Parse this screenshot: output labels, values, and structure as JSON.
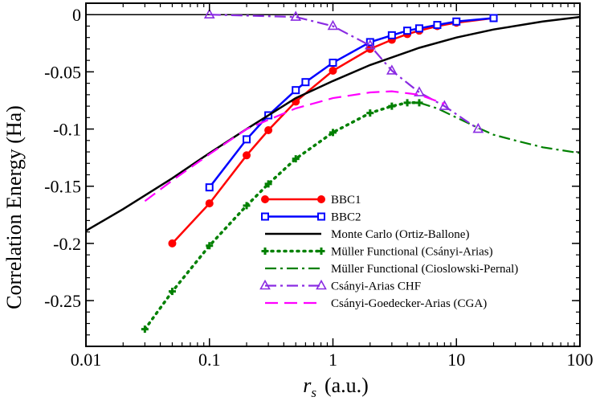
{
  "chart_data": {
    "type": "line",
    "title": "",
    "xlabel": "r",
    "xlabel_sub": "s",
    "xlabel_units": "(a.u.)",
    "ylabel": "Correlation Energy (Ha)",
    "xscale": "log",
    "xlim": [
      0.01,
      100
    ],
    "ylim": [
      -0.29,
      0.01
    ],
    "grid": false,
    "legend_position": "bottom-center",
    "x_ticks": [
      {
        "value": 0.01,
        "label": "0.01"
      },
      {
        "value": 0.1,
        "label": "0.1"
      },
      {
        "value": 1,
        "label": "1"
      },
      {
        "value": 10,
        "label": "10"
      },
      {
        "value": 100,
        "label": "100"
      }
    ],
    "y_ticks": [
      {
        "value": 0,
        "label": "0"
      },
      {
        "value": -0.05,
        "label": "-0.05"
      },
      {
        "value": -0.1,
        "label": "-0.1"
      },
      {
        "value": -0.15,
        "label": "-0.15"
      },
      {
        "value": -0.2,
        "label": "-0.2"
      },
      {
        "value": -0.25,
        "label": "-0.25"
      }
    ],
    "series": [
      {
        "name": "BBC1",
        "color": "#ff0000",
        "style": "solid",
        "marker": "circle",
        "x": [
          0.05,
          0.1,
          0.2,
          0.3,
          0.5,
          1,
          2,
          3,
          4,
          5,
          7,
          10,
          20
        ],
        "y": [
          -0.2,
          -0.165,
          -0.123,
          -0.101,
          -0.076,
          -0.049,
          -0.03,
          -0.022,
          -0.017,
          -0.014,
          -0.01,
          -0.007,
          -0.003
        ]
      },
      {
        "name": "BBC2",
        "color": "#0000ff",
        "style": "solid",
        "marker": "square-open",
        "x": [
          0.1,
          0.2,
          0.3,
          0.5,
          0.6,
          1,
          2,
          3,
          4,
          5,
          7,
          10,
          20
        ],
        "y": [
          -0.151,
          -0.109,
          -0.088,
          -0.066,
          -0.059,
          -0.042,
          -0.024,
          -0.018,
          -0.014,
          -0.012,
          -0.009,
          -0.006,
          -0.003
        ]
      },
      {
        "name": "Monte Carlo (Ortiz-Ballone)",
        "color": "#000000",
        "style": "solid",
        "marker": "none",
        "x": [
          0.01,
          0.02,
          0.05,
          0.1,
          0.2,
          0.5,
          1,
          2,
          5,
          10,
          20,
          50,
          100
        ],
        "y": [
          -0.189,
          -0.17,
          -0.143,
          -0.121,
          -0.1,
          -0.073,
          -0.058,
          -0.044,
          -0.029,
          -0.02,
          -0.013,
          -0.006,
          -0.002
        ]
      },
      {
        "name": "Müller Functional (Csányi-Arias)",
        "color": "#008000",
        "style": "dotted",
        "marker": "plus",
        "x": [
          0.03,
          0.05,
          0.1,
          0.2,
          0.3,
          0.5,
          1,
          2,
          3,
          4,
          5
        ],
        "y": [
          -0.275,
          -0.242,
          -0.202,
          -0.167,
          -0.148,
          -0.126,
          -0.103,
          -0.086,
          -0.08,
          -0.077,
          -0.077
        ]
      },
      {
        "name": "Müller Functional (Cioslowski-Pernal)",
        "color": "#008000",
        "style": "dashdot",
        "marker": "none",
        "x": [
          5,
          7,
          10,
          15,
          20,
          30,
          50,
          100
        ],
        "y": [
          -0.077,
          -0.082,
          -0.09,
          -0.099,
          -0.105,
          -0.11,
          -0.116,
          -0.121
        ]
      },
      {
        "name": "Csányi-Arias CHF",
        "color": "#8a2be2",
        "style": "dashdot",
        "marker": "triangle-open",
        "x": [
          0.1,
          0.5,
          1,
          2,
          3,
          5,
          8,
          15
        ],
        "y": [
          0.0,
          -0.002,
          -0.01,
          -0.027,
          -0.049,
          -0.068,
          -0.08,
          -0.1
        ]
      },
      {
        "name": "Csányi-Goedecker-Arias (CGA)",
        "color": "#ff00ff",
        "style": "dashed",
        "marker": "none",
        "x": [
          0.03,
          0.05,
          0.1,
          0.2,
          0.5,
          1,
          2,
          3,
          5,
          8
        ],
        "y": [
          -0.163,
          -0.145,
          -0.122,
          -0.1,
          -0.082,
          -0.073,
          -0.068,
          -0.067,
          -0.07,
          -0.078
        ]
      }
    ]
  }
}
